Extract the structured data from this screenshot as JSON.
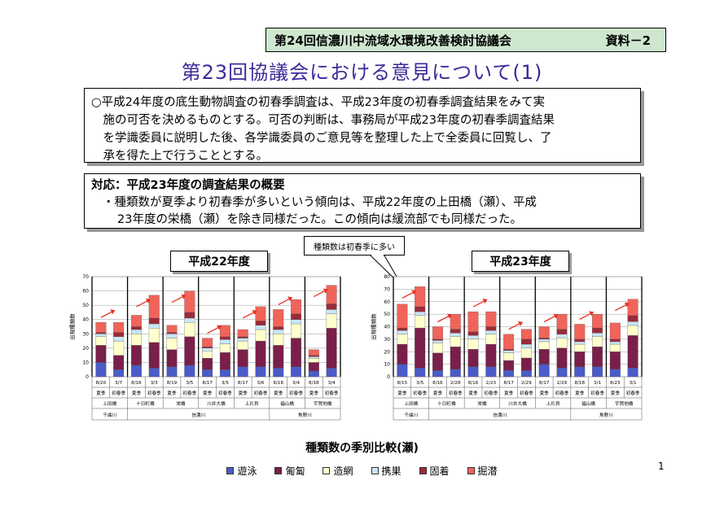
{
  "header": {
    "title": "第24回信濃川中流域水環境改善検討協議会",
    "doc_label": "資料－2"
  },
  "main_title": "第23回協議会における意見について(1)",
  "box1": {
    "lines": [
      "○平成24年度の底生動物調査の初春季調査は、平成23年度の初春季調査結果をみて実",
      "　施の可否を決めるものとする。可否の判断は、事務局が平成23年度の初春季調査結果",
      "　を学識委員に説明した後、各学識委員のご意見等を整理した上で全委員に回覧し、了",
      "　承を得た上で行うこととする。"
    ]
  },
  "box2": {
    "heading": "対応：平成23年度の調査結果の概要",
    "lines": [
      "・種類数が夏季より初春季が多いという傾向は、平成22年度の上田橋（瀬）、平成",
      "23年度の栄橋（瀬）を除き同様だった。この傾向は緩流部でも同様だった。"
    ]
  },
  "callout": "種類数は初春季に多い",
  "caption": "種類数の季別比較(瀬)",
  "page_number": "1",
  "chart_data": [
    {
      "type": "bar",
      "stacked": true,
      "title": "平成22年度",
      "ylabel": "出現種類数",
      "ylim": [
        0,
        70
      ],
      "yticks": [
        0,
        10,
        20,
        30,
        40,
        50,
        60,
        70
      ],
      "grid": true,
      "colors": [
        "#4a5cc8",
        "#7a1f4a",
        "#ffffcc",
        "#c9e6f5",
        "#9a2a3a",
        "#f0645a"
      ],
      "categories": [
        "8/20",
        "3/7",
        "8/16",
        "3/3",
        "8/19",
        "3/5",
        "8/17",
        "3/5",
        "8/17",
        "3/6",
        "8/18",
        "3/4",
        "8/18",
        "3/4"
      ],
      "season": [
        "夏季",
        "初春季",
        "夏季",
        "初春季",
        "夏季",
        "初春季",
        "夏季",
        "初春季",
        "夏季",
        "初春季",
        "夏季",
        "初春季",
        "夏季",
        "初春季"
      ],
      "stations": [
        "上田橋",
        "十日町橋",
        "栄橋",
        "川井大橋",
        "上片貝",
        "福山橋",
        "宇賀地橋"
      ],
      "rivers": [
        {
          "name": "千曲川",
          "span": 1
        },
        {
          "name": "信濃川",
          "span": 4
        },
        {
          "name": "魚野川",
          "span": 2
        }
      ],
      "series": [
        {
          "name": "遊泳",
          "values": [
            10,
            5,
            8,
            6,
            7,
            8,
            5,
            5,
            7,
            7,
            6,
            7,
            4,
            6
          ]
        },
        {
          "name": "匍匐",
          "values": [
            12,
            10,
            14,
            18,
            12,
            20,
            8,
            12,
            12,
            18,
            16,
            20,
            6,
            28
          ]
        },
        {
          "name": "造網",
          "values": [
            6,
            10,
            8,
            10,
            8,
            10,
            5,
            6,
            6,
            8,
            8,
            10,
            3,
            10
          ]
        },
        {
          "name": "携巣",
          "values": [
            2,
            3,
            3,
            3,
            3,
            3,
            2,
            3,
            2,
            3,
            3,
            3,
            1,
            3
          ]
        },
        {
          "name": "固着",
          "values": [
            1,
            3,
            2,
            4,
            1,
            4,
            1,
            2,
            1,
            3,
            2,
            4,
            1,
            4
          ]
        },
        {
          "name": "掘潜",
          "values": [
            7,
            7,
            8,
            16,
            5,
            15,
            6,
            8,
            5,
            10,
            12,
            10,
            4,
            13
          ]
        }
      ]
    },
    {
      "type": "bar",
      "stacked": true,
      "title": "平成23年度",
      "ylabel": "出現種類数",
      "ylim": [
        0,
        80
      ],
      "yticks": [
        0,
        10,
        20,
        30,
        40,
        50,
        60,
        70,
        80
      ],
      "grid": true,
      "colors": [
        "#4a5cc8",
        "#7a1f4a",
        "#ffffcc",
        "#c9e6f5",
        "#9a2a3a",
        "#f0645a"
      ],
      "categories": [
        "8/15",
        "3/5",
        "8/16",
        "2/28",
        "8/16",
        "2/23",
        "8/17",
        "2/29",
        "8/17",
        "2/29",
        "8/18",
        "3/1",
        "8/23",
        "3/1"
      ],
      "season": [
        "夏季",
        "初春季",
        "夏季",
        "初春季",
        "夏季",
        "初春季",
        "夏季",
        "初春季",
        "夏季",
        "初春季",
        "夏季",
        "初春季",
        "夏季",
        "初春季"
      ],
      "stations": [
        "上田橋",
        "十日町橋",
        "栄橋",
        "川井大橋",
        "上片貝",
        "福山橋",
        "宇賀地橋"
      ],
      "rivers": [
        {
          "name": "千曲川",
          "span": 1
        },
        {
          "name": "信濃川",
          "span": 4
        },
        {
          "name": "魚野川",
          "span": 2
        }
      ],
      "series": [
        {
          "name": "遊泳",
          "values": [
            10,
            7,
            5,
            6,
            8,
            8,
            5,
            5,
            10,
            7,
            8,
            8,
            6,
            7
          ]
        },
        {
          "name": "匍匐",
          "values": [
            16,
            32,
            14,
            18,
            14,
            18,
            8,
            10,
            12,
            16,
            12,
            16,
            14,
            26
          ]
        },
        {
          "name": "造網",
          "values": [
            8,
            10,
            8,
            8,
            8,
            8,
            6,
            8,
            6,
            8,
            6,
            8,
            6,
            8
          ]
        },
        {
          "name": "携巣",
          "values": [
            3,
            3,
            2,
            3,
            3,
            3,
            2,
            3,
            2,
            3,
            2,
            3,
            2,
            3
          ]
        },
        {
          "name": "固着",
          "values": [
            2,
            4,
            1,
            3,
            3,
            3,
            1,
            4,
            1,
            4,
            2,
            4,
            2,
            5
          ]
        },
        {
          "name": "掘潜",
          "values": [
            19,
            16,
            10,
            12,
            16,
            12,
            12,
            8,
            9,
            12,
            12,
            11,
            13,
            13
          ]
        }
      ]
    }
  ]
}
